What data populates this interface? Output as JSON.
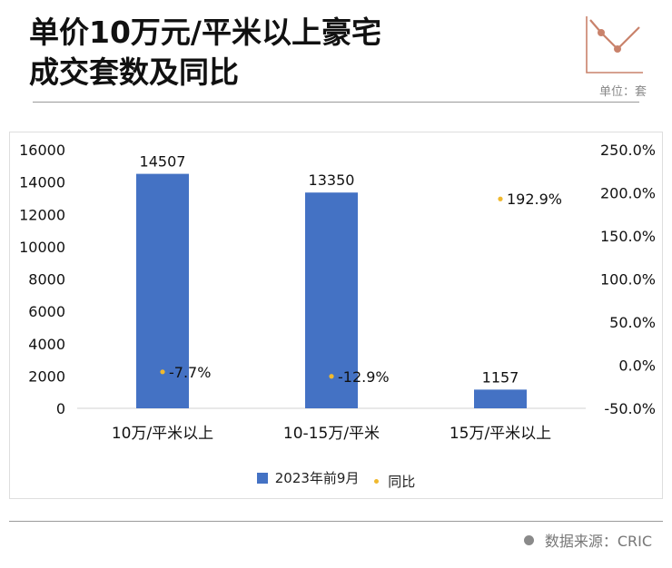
{
  "header": {
    "title_line1": "单价10万元/平米以上豪宅",
    "title_line2": "成交套数及同比",
    "unit": "单位：套",
    "accent_color": "#c9826b"
  },
  "chart_data": {
    "type": "bar",
    "categories": [
      "10万/平米以上",
      "10-15万/平米",
      "15万/平米以上"
    ],
    "series": [
      {
        "name": "2023年前9月",
        "kind": "bar",
        "axis": "left",
        "color": "#4472c4",
        "values": [
          14507,
          13350,
          1157
        ],
        "labels": [
          "14507",
          "13350",
          "1157"
        ]
      },
      {
        "name": "同比",
        "kind": "scatter",
        "axis": "right",
        "color": "#f0b92e",
        "values": [
          -7.7,
          -12.9,
          192.9
        ],
        "labels": [
          "-7.7%",
          "-12.9%",
          "192.9%"
        ]
      }
    ],
    "ylim": [
      0,
      16000
    ],
    "yticks": [
      "16000",
      "14000",
      "12000",
      "10000",
      "8000",
      "6000",
      "4000",
      "2000",
      "0"
    ],
    "ylim_right": [
      -50,
      250
    ],
    "yticks_right": [
      "250.0%",
      "200.0%",
      "150.0%",
      "100.0%",
      "50.0%",
      "0.0%",
      "-50.0%"
    ],
    "grid": false,
    "legend_position": "bottom"
  },
  "footer": {
    "source": "数据来源：CRIC"
  }
}
